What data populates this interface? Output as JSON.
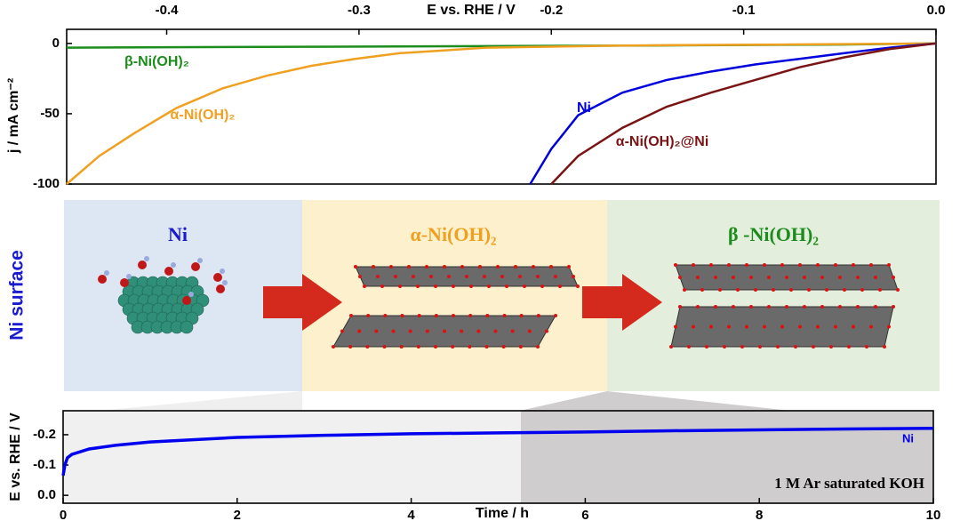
{
  "chart_data": [
    {
      "type": "line",
      "x_axis": "top",
      "xlabel": "E vs. RHE / V",
      "ylabel": "j / mA cm⁻²",
      "xlim": [
        -0.452,
        0
      ],
      "xticks": [
        -0.4,
        -0.3,
        -0.2,
        -0.1,
        {
          "value": 0,
          "label": "0.0"
        }
      ],
      "ylim": [
        -100,
        10
      ],
      "yticks": [
        0,
        -50,
        -100
      ],
      "series": [
        {
          "name": "β-Ni(OH)₂",
          "color": "#1c8c1c",
          "x": [
            -0.452,
            -0.35,
            -0.25,
            -0.15,
            -0.05,
            0
          ],
          "values": [
            -3,
            -2.5,
            -2,
            -1.5,
            -0.8,
            0
          ]
        },
        {
          "name": "α-Ni(OH)₂",
          "color": "#f0a020",
          "x": [
            -0.452,
            -0.435,
            -0.417,
            -0.395,
            -0.371,
            -0.348,
            -0.325,
            -0.302,
            -0.279,
            -0.233,
            -0.163,
            -0.08,
            0
          ],
          "values": [
            -100,
            -80,
            -64,
            -46,
            -32,
            -23,
            -16,
            -11,
            -7,
            -3,
            -1.5,
            -0.8,
            0
          ]
        },
        {
          "name": "Ni",
          "color": "#0000dd",
          "x": [
            -0.211,
            -0.2,
            -0.186,
            -0.163,
            -0.14,
            -0.117,
            -0.094,
            -0.071,
            -0.048,
            -0.024,
            0
          ],
          "values": [
            -100,
            -75,
            -51,
            -35,
            -26,
            -20,
            -15,
            -11,
            -7,
            -3,
            0
          ]
        },
        {
          "name": "α-Ni(OH)₂@Ni",
          "color": "#7a1414",
          "x": [
            -0.2,
            -0.186,
            -0.163,
            -0.14,
            -0.117,
            -0.094,
            -0.071,
            -0.048,
            -0.024,
            0
          ],
          "values": [
            -100,
            -80,
            -60,
            -45,
            -35,
            -26,
            -17,
            -10,
            -4,
            0
          ]
        }
      ]
    },
    {
      "type": "line",
      "x_axis": "bottom",
      "xlabel": "Time / h",
      "ylabel": "E vs. RHE / V",
      "annotation": "1 M  Ar saturated KOH",
      "xlim": [
        0,
        10
      ],
      "xticks": [
        0,
        2,
        4,
        6,
        8,
        10
      ],
      "ylim": [
        0.026,
        -0.279
      ],
      "yticks": [
        -0.2,
        -0.1,
        {
          "value": 0,
          "label": "0.0"
        }
      ],
      "series": [
        {
          "name": "Ni",
          "color": "#0000ee",
          "x": [
            0,
            0.02,
            0.05,
            0.1,
            0.3,
            0.6,
            1,
            2,
            3,
            4,
            5,
            6,
            7,
            8,
            9,
            10
          ],
          "values": [
            -0.065,
            -0.1,
            -0.124,
            -0.135,
            -0.153,
            -0.165,
            -0.176,
            -0.191,
            -0.198,
            -0.203,
            -0.206,
            -0.209,
            -0.213,
            -0.216,
            -0.219,
            -0.221
          ]
        }
      ]
    }
  ],
  "diagram": {
    "side_label": "Ni surface",
    "stages": [
      "Ni",
      "α-Ni(OH)₂",
      "β -Ni(OH)₂"
    ]
  }
}
